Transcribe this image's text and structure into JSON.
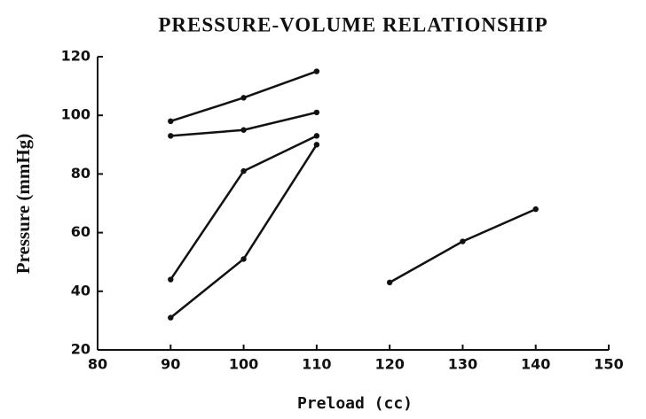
{
  "chart_data": {
    "type": "line",
    "title": "PRESSURE-VOLUME RELATIONSHIP",
    "x_label": "Preload (cc)",
    "y_label": "Pressure (mmHg)",
    "xlim": [
      80,
      150
    ],
    "xticks": [
      80,
      90,
      100,
      110,
      120,
      130,
      140,
      150
    ],
    "ylim": [
      20,
      120
    ],
    "yticks": [
      20,
      40,
      60,
      80,
      100,
      120
    ],
    "grid": false,
    "series": [
      {
        "color": "#111111",
        "x": [
          90,
          100,
          110
        ],
        "values": [
          98,
          106,
          115
        ]
      },
      {
        "color": "#111111",
        "x": [
          90,
          100,
          110
        ],
        "values": [
          93,
          95,
          101
        ]
      },
      {
        "color": "#111111",
        "x": [
          90,
          100,
          110
        ],
        "values": [
          44,
          81,
          93
        ]
      },
      {
        "color": "#111111",
        "x": [
          90,
          100,
          110
        ],
        "values": [
          31,
          51,
          90
        ]
      },
      {
        "color": "#111111",
        "x": [
          120,
          130,
          140
        ],
        "values": [
          43,
          57,
          68
        ]
      }
    ]
  }
}
